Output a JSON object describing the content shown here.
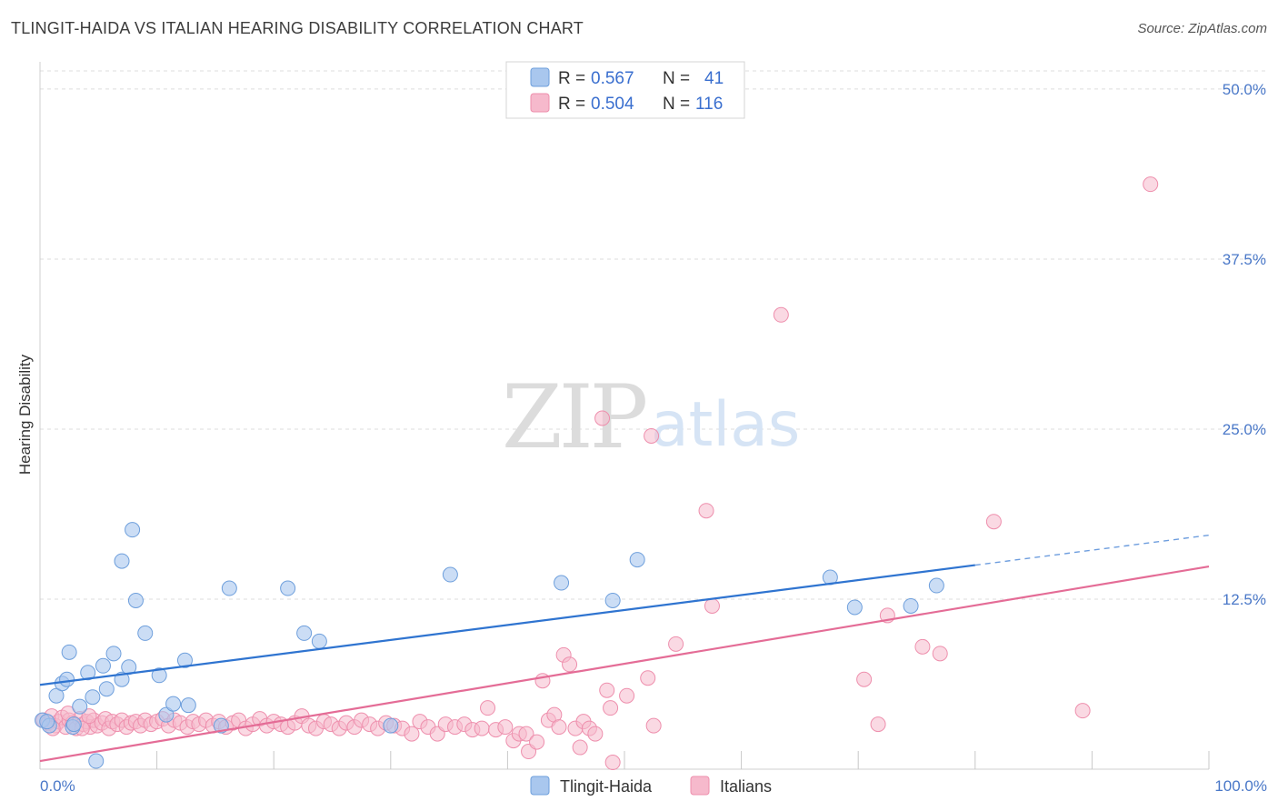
{
  "title": "TLINGIT-HAIDA VS ITALIAN HEARING DISABILITY CORRELATION CHART",
  "source": "Source: ZipAtlas.com",
  "watermark": {
    "part1": "ZIP",
    "part2": "atlas"
  },
  "colors": {
    "tlingit_fill": "#a9c7ee",
    "tlingit_stroke": "#6e9fdc",
    "tlingit_line": "#2f74d0",
    "italian_fill": "#f6b9cc",
    "italian_stroke": "#ee8fad",
    "italian_line": "#e46c96",
    "grid": "#dddddd",
    "tick_label": "#4a78c8"
  },
  "legend": {
    "rows": [
      {
        "r_label": "R =",
        "r_value": "0.567",
        "n_label": "N =",
        "n_value": "41"
      },
      {
        "r_label": "R =",
        "r_value": "0.504",
        "n_label": "N =",
        "n_value": "116"
      }
    ]
  },
  "bottom_legend": [
    "Tlingit-Haida",
    "Italians"
  ],
  "chart_data": {
    "type": "scatter",
    "title": "TLINGIT-HAIDA VS ITALIAN HEARING DISABILITY CORRELATION CHART",
    "xlabel": "",
    "ylabel": "Hearing Disability",
    "xlim": [
      0,
      100
    ],
    "ylim": [
      0,
      52
    ],
    "x_tick_labels": [
      "0.0%",
      "100.0%"
    ],
    "y_ticks": [
      12.5,
      25.0,
      37.5,
      50.0
    ],
    "y_tick_labels": [
      "12.5%",
      "25.0%",
      "37.5%",
      "50.0%"
    ],
    "series": [
      {
        "name": "Tlingit-Haida",
        "R": 0.567,
        "N": 41,
        "trend": {
          "x0": 0,
          "y0": 6.2,
          "x1": 80,
          "y1": 15.0,
          "dash_to_x": 100,
          "dash_to_y": 17.2
        },
        "points": [
          [
            0.2,
            3.6
          ],
          [
            0.8,
            3.2
          ],
          [
            1.4,
            5.4
          ],
          [
            1.9,
            6.3
          ],
          [
            2.3,
            6.6
          ],
          [
            2.5,
            8.6
          ],
          [
            2.8,
            3.1
          ],
          [
            3.4,
            4.6
          ],
          [
            4.1,
            7.1
          ],
          [
            4.5,
            5.3
          ],
          [
            5.4,
            7.6
          ],
          [
            5.7,
            5.9
          ],
          [
            6.3,
            8.5
          ],
          [
            7.0,
            6.6
          ],
          [
            7.6,
            7.5
          ],
          [
            7.9,
            17.6
          ],
          [
            7.0,
            15.3
          ],
          [
            8.2,
            12.4
          ],
          [
            9.0,
            10.0
          ],
          [
            10.2,
            6.9
          ],
          [
            10.8,
            4.0
          ],
          [
            11.4,
            4.8
          ],
          [
            12.4,
            8.0
          ],
          [
            12.7,
            4.7
          ],
          [
            15.5,
            3.2
          ],
          [
            16.2,
            13.3
          ],
          [
            21.2,
            13.3
          ],
          [
            22.6,
            10.0
          ],
          [
            23.9,
            9.4
          ],
          [
            30.0,
            3.2
          ],
          [
            35.1,
            14.3
          ],
          [
            44.6,
            13.7
          ],
          [
            49.0,
            12.4
          ],
          [
            51.1,
            15.4
          ],
          [
            67.6,
            14.1
          ],
          [
            69.7,
            11.9
          ],
          [
            74.5,
            12.0
          ],
          [
            76.7,
            13.5
          ],
          [
            0.6,
            3.5
          ],
          [
            4.8,
            0.6
          ],
          [
            2.9,
            3.3
          ]
        ]
      },
      {
        "name": "Italians",
        "R": 0.504,
        "N": 116,
        "trend": {
          "x0": 0,
          "y0": 0.6,
          "x1": 100,
          "y1": 14.9
        },
        "points": [
          [
            0.3,
            3.6
          ],
          [
            0.7,
            3.4
          ],
          [
            1.0,
            3.9
          ],
          [
            1.3,
            3.2
          ],
          [
            1.6,
            3.5
          ],
          [
            1.9,
            3.8
          ],
          [
            2.2,
            3.1
          ],
          [
            2.5,
            3.6
          ],
          [
            2.8,
            3.4
          ],
          [
            3.1,
            3.0
          ],
          [
            3.4,
            3.7
          ],
          [
            3.7,
            3.3
          ],
          [
            4.0,
            3.5
          ],
          [
            4.3,
            3.1
          ],
          [
            4.6,
            3.6
          ],
          [
            4.9,
            3.2
          ],
          [
            5.3,
            3.4
          ],
          [
            5.6,
            3.7
          ],
          [
            5.9,
            3.0
          ],
          [
            6.2,
            3.5
          ],
          [
            6.6,
            3.3
          ],
          [
            7.0,
            3.6
          ],
          [
            7.4,
            3.1
          ],
          [
            7.8,
            3.4
          ],
          [
            8.2,
            3.5
          ],
          [
            8.6,
            3.2
          ],
          [
            9.0,
            3.6
          ],
          [
            9.5,
            3.3
          ],
          [
            10.0,
            3.5
          ],
          [
            10.5,
            3.7
          ],
          [
            11.0,
            3.2
          ],
          [
            11.5,
            3.6
          ],
          [
            12.0,
            3.4
          ],
          [
            12.6,
            3.1
          ],
          [
            13.1,
            3.5
          ],
          [
            13.6,
            3.3
          ],
          [
            14.2,
            3.6
          ],
          [
            14.8,
            3.2
          ],
          [
            15.3,
            3.5
          ],
          [
            15.9,
            3.1
          ],
          [
            16.5,
            3.4
          ],
          [
            17.0,
            3.6
          ],
          [
            17.6,
            3.0
          ],
          [
            18.2,
            3.3
          ],
          [
            18.8,
            3.7
          ],
          [
            19.4,
            3.2
          ],
          [
            20.0,
            3.5
          ],
          [
            20.6,
            3.3
          ],
          [
            21.2,
            3.1
          ],
          [
            21.8,
            3.4
          ],
          [
            22.4,
            3.9
          ],
          [
            23.0,
            3.2
          ],
          [
            23.6,
            3.0
          ],
          [
            24.3,
            3.5
          ],
          [
            24.9,
            3.3
          ],
          [
            25.6,
            3.0
          ],
          [
            26.2,
            3.4
          ],
          [
            26.9,
            3.1
          ],
          [
            27.5,
            3.6
          ],
          [
            28.2,
            3.3
          ],
          [
            28.9,
            3.0
          ],
          [
            29.6,
            3.4
          ],
          [
            30.3,
            3.2
          ],
          [
            31.0,
            3.0
          ],
          [
            31.8,
            2.6
          ],
          [
            32.5,
            3.5
          ],
          [
            33.2,
            3.1
          ],
          [
            34.0,
            2.6
          ],
          [
            34.7,
            3.3
          ],
          [
            35.5,
            3.1
          ],
          [
            36.3,
            3.3
          ],
          [
            37.0,
            2.9
          ],
          [
            37.8,
            3.0
          ],
          [
            38.3,
            4.5
          ],
          [
            39.0,
            2.9
          ],
          [
            39.8,
            3.1
          ],
          [
            40.5,
            2.1
          ],
          [
            41.0,
            2.6
          ],
          [
            41.6,
            2.6
          ],
          [
            41.8,
            1.3
          ],
          [
            42.5,
            2.0
          ],
          [
            43.0,
            6.5
          ],
          [
            43.5,
            3.6
          ],
          [
            44.0,
            4.0
          ],
          [
            44.4,
            3.1
          ],
          [
            44.8,
            8.4
          ],
          [
            45.3,
            7.7
          ],
          [
            45.8,
            3.0
          ],
          [
            46.2,
            1.6
          ],
          [
            46.5,
            3.5
          ],
          [
            47.0,
            3.0
          ],
          [
            47.5,
            2.6
          ],
          [
            48.5,
            5.8
          ],
          [
            48.8,
            4.5
          ],
          [
            49.0,
            0.5
          ],
          [
            50.2,
            5.4
          ],
          [
            52.0,
            6.7
          ],
          [
            52.5,
            3.2
          ],
          [
            54.4,
            9.2
          ],
          [
            57.5,
            12.0
          ],
          [
            52.3,
            24.5
          ],
          [
            48.1,
            25.8
          ],
          [
            57.0,
            19.0
          ],
          [
            63.4,
            33.4
          ],
          [
            72.5,
            11.3
          ],
          [
            75.5,
            9.0
          ],
          [
            77.0,
            8.5
          ],
          [
            71.7,
            3.3
          ],
          [
            70.5,
            6.6
          ],
          [
            81.6,
            18.2
          ],
          [
            89.2,
            4.3
          ],
          [
            95.0,
            43.0
          ],
          [
            2.4,
            4.1
          ],
          [
            3.6,
            3.0
          ],
          [
            4.2,
            3.9
          ],
          [
            1.1,
            3.0
          ]
        ]
      }
    ]
  }
}
